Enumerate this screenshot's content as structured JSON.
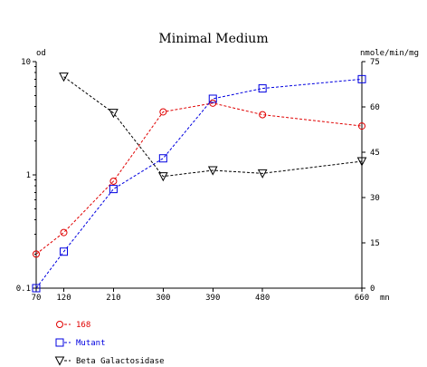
{
  "chart_data": {
    "type": "line",
    "title": "Minimal Medium",
    "x": [
      70,
      120,
      210,
      300,
      390,
      480,
      660
    ],
    "x_tick_labels": [
      "70",
      "120",
      "210",
      "300",
      "390",
      "480",
      "660"
    ],
    "x_unit": "mn",
    "y_left": {
      "unit": "od",
      "scale": "log",
      "ylim": [
        0.1,
        10
      ],
      "tick_labels": [
        "0.1",
        "1",
        "10"
      ]
    },
    "y_right": {
      "unit": "nmole/min/mg",
      "scale": "linear",
      "ylim": [
        0,
        75
      ],
      "tick_values": [
        0,
        15,
        30,
        45,
        60,
        75
      ],
      "tick_labels": [
        "0",
        "15",
        "30",
        "45",
        "60",
        "75"
      ]
    },
    "series": [
      {
        "name": "168",
        "axis": "left",
        "marker": "circle",
        "color": "#e00000",
        "x": [
          70,
          120,
          210,
          300,
          390,
          480,
          660
        ],
        "values": [
          0.2,
          0.31,
          0.88,
          3.6,
          4.3,
          3.4,
          2.7
        ]
      },
      {
        "name": "Mutant",
        "axis": "left",
        "marker": "square",
        "color": "#0000e0",
        "x": [
          70,
          120,
          210,
          300,
          390,
          480,
          660
        ],
        "values": [
          0.1,
          0.21,
          0.75,
          1.4,
          4.7,
          5.8,
          7.0
        ]
      },
      {
        "name": "Beta Galactosidase",
        "axis": "right",
        "marker": "triangle-down",
        "color": "#000000",
        "x": [
          120,
          210,
          300,
          390,
          480,
          660
        ],
        "values": [
          70,
          58,
          37,
          39,
          38,
          42
        ]
      }
    ],
    "legend_position": "bottom-left",
    "grid": false
  }
}
